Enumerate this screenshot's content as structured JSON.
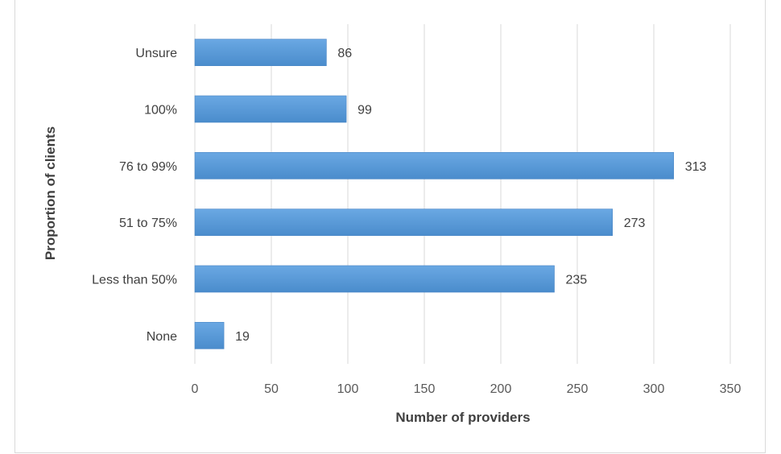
{
  "chart_data": {
    "type": "bar",
    "orientation": "horizontal",
    "categories": [
      "None",
      "Less than 50%",
      "51 to 75%",
      "76 to 99%",
      "100%",
      "Unsure"
    ],
    "values": [
      19,
      235,
      273,
      313,
      99,
      86
    ],
    "xlabel": "Number of providers",
    "ylabel": "Proportion of clients",
    "xlim": [
      0,
      350
    ],
    "xticks": [
      0,
      50,
      100,
      150,
      200,
      250,
      300,
      350
    ],
    "data_labels": [
      "19",
      "235",
      "273",
      "313",
      "99",
      "86"
    ],
    "grid": "vertical",
    "bar_color": "#5b9bd5"
  }
}
